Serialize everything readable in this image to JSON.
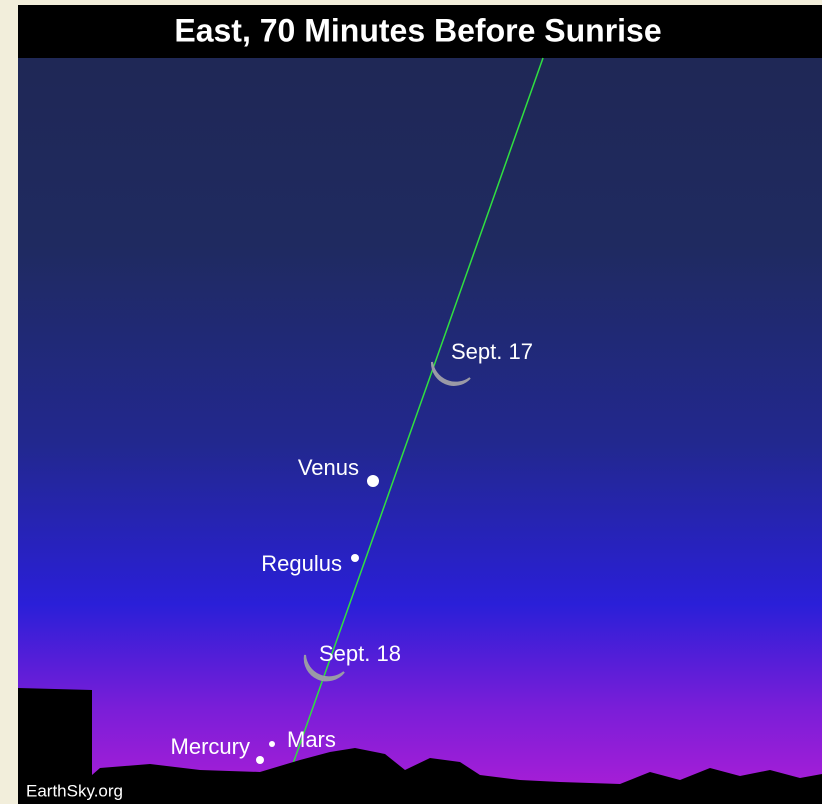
{
  "header": {
    "title": "East, 70 Minutes Before Sunrise"
  },
  "objects": [
    {
      "label": "Sept. 17"
    },
    {
      "label": "Venus"
    },
    {
      "label": "Regulus"
    },
    {
      "label": "Sept. 18"
    },
    {
      "label": "Mercury"
    },
    {
      "label": "Mars"
    }
  ],
  "credit": "EarthSky.org"
}
